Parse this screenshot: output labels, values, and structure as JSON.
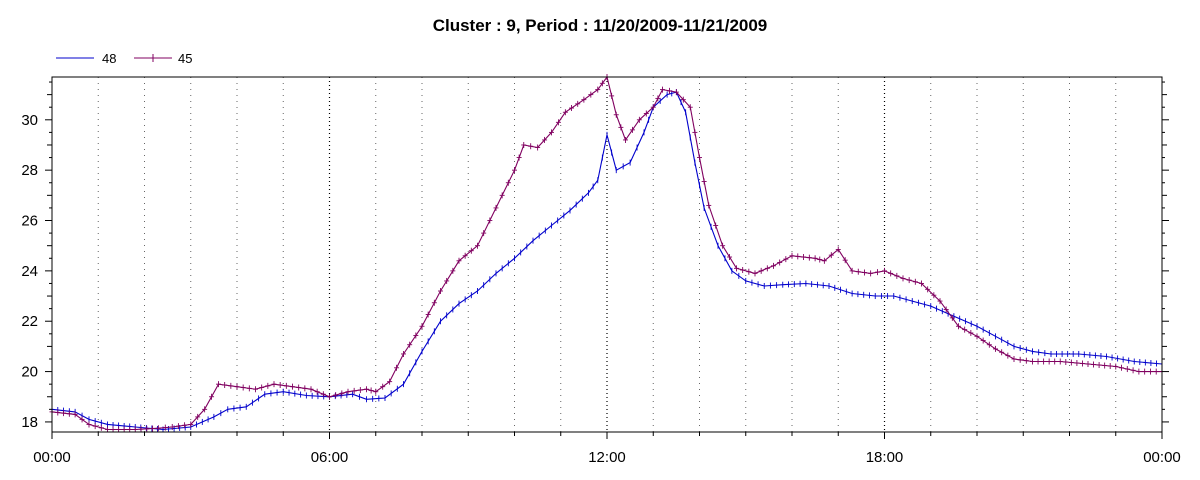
{
  "chart_data": {
    "type": "line",
    "title": "Cluster : 9, Period : 11/20/2009-11/21/2009",
    "xlabel": "",
    "ylabel": "",
    "x_unit": "hours",
    "xlim": [
      0,
      24
    ],
    "ylim": [
      17.6,
      31.7
    ],
    "x_ticks": [
      {
        "value": 0,
        "label": "00:00"
      },
      {
        "value": 6,
        "label": "06:00"
      },
      {
        "value": 12,
        "label": "12:00"
      },
      {
        "value": 18,
        "label": "18:00"
      },
      {
        "value": 24,
        "label": "00:00"
      }
    ],
    "y_ticks": [
      18,
      20,
      22,
      24,
      26,
      28,
      30
    ],
    "grid": {
      "vertical_dotted": true,
      "horizontal": false
    },
    "legend": {
      "placement": "top-left"
    },
    "series": [
      {
        "name": "48",
        "color": "#0000cc",
        "marker": "tick",
        "points": [
          [
            0,
            18.5
          ],
          [
            0.5,
            18.4
          ],
          [
            0.8,
            18.1
          ],
          [
            1.2,
            17.9
          ],
          [
            1.8,
            17.8
          ],
          [
            2.4,
            17.7
          ],
          [
            3.0,
            17.8
          ],
          [
            3.5,
            18.2
          ],
          [
            3.8,
            18.5
          ],
          [
            4.2,
            18.6
          ],
          [
            4.6,
            19.1
          ],
          [
            5.0,
            19.2
          ],
          [
            5.5,
            19.05
          ],
          [
            6.0,
            19.0
          ],
          [
            6.5,
            19.1
          ],
          [
            6.8,
            18.9
          ],
          [
            7.2,
            18.95
          ],
          [
            7.6,
            19.5
          ],
          [
            8.0,
            20.8
          ],
          [
            8.4,
            22.0
          ],
          [
            8.8,
            22.7
          ],
          [
            9.2,
            23.2
          ],
          [
            9.6,
            23.9
          ],
          [
            10.0,
            24.5
          ],
          [
            10.4,
            25.2
          ],
          [
            10.8,
            25.8
          ],
          [
            11.2,
            26.4
          ],
          [
            11.6,
            27.1
          ],
          [
            11.8,
            27.6
          ],
          [
            12.0,
            29.4
          ],
          [
            12.2,
            28.0
          ],
          [
            12.5,
            28.3
          ],
          [
            12.8,
            29.5
          ],
          [
            13.0,
            30.5
          ],
          [
            13.3,
            31.0
          ],
          [
            13.5,
            31.1
          ],
          [
            13.7,
            30.3
          ],
          [
            13.9,
            28.3
          ],
          [
            14.1,
            26.5
          ],
          [
            14.4,
            25.0
          ],
          [
            14.7,
            24.0
          ],
          [
            15.0,
            23.6
          ],
          [
            15.4,
            23.4
          ],
          [
            15.8,
            23.45
          ],
          [
            16.3,
            23.5
          ],
          [
            16.8,
            23.4
          ],
          [
            17.3,
            23.1
          ],
          [
            17.8,
            23.0
          ],
          [
            18.2,
            23.0
          ],
          [
            18.6,
            22.8
          ],
          [
            19.0,
            22.6
          ],
          [
            19.5,
            22.2
          ],
          [
            20.0,
            21.8
          ],
          [
            20.4,
            21.4
          ],
          [
            20.8,
            21.0
          ],
          [
            21.2,
            20.8
          ],
          [
            21.6,
            20.7
          ],
          [
            22.2,
            20.7
          ],
          [
            22.8,
            20.6
          ],
          [
            23.4,
            20.4
          ],
          [
            24.0,
            20.3
          ]
        ]
      },
      {
        "name": "45",
        "color": "#800060",
        "marker": "plus",
        "points": [
          [
            0,
            18.4
          ],
          [
            0.5,
            18.3
          ],
          [
            0.8,
            17.9
          ],
          [
            1.2,
            17.7
          ],
          [
            1.8,
            17.7
          ],
          [
            2.3,
            17.75
          ],
          [
            2.6,
            17.8
          ],
          [
            3.0,
            17.9
          ],
          [
            3.3,
            18.5
          ],
          [
            3.6,
            19.5
          ],
          [
            4.0,
            19.4
          ],
          [
            4.4,
            19.3
          ],
          [
            4.8,
            19.5
          ],
          [
            5.2,
            19.4
          ],
          [
            5.6,
            19.3
          ],
          [
            6.0,
            19.0
          ],
          [
            6.4,
            19.2
          ],
          [
            6.8,
            19.3
          ],
          [
            7.0,
            19.2
          ],
          [
            7.3,
            19.6
          ],
          [
            7.6,
            20.7
          ],
          [
            8.0,
            21.8
          ],
          [
            8.4,
            23.2
          ],
          [
            8.8,
            24.4
          ],
          [
            9.2,
            25.0
          ],
          [
            9.6,
            26.5
          ],
          [
            10.0,
            28.0
          ],
          [
            10.2,
            29.0
          ],
          [
            10.5,
            28.9
          ],
          [
            10.8,
            29.5
          ],
          [
            11.1,
            30.3
          ],
          [
            11.5,
            30.8
          ],
          [
            11.8,
            31.2
          ],
          [
            12.0,
            31.8
          ],
          [
            12.2,
            30.2
          ],
          [
            12.4,
            29.2
          ],
          [
            12.7,
            30.0
          ],
          [
            13.0,
            30.5
          ],
          [
            13.2,
            31.2
          ],
          [
            13.5,
            31.1
          ],
          [
            13.8,
            30.5
          ],
          [
            14.0,
            28.5
          ],
          [
            14.2,
            26.6
          ],
          [
            14.5,
            25.0
          ],
          [
            14.8,
            24.1
          ],
          [
            15.2,
            23.9
          ],
          [
            15.6,
            24.2
          ],
          [
            16.0,
            24.6
          ],
          [
            16.5,
            24.5
          ],
          [
            16.7,
            24.4
          ],
          [
            17.0,
            24.85
          ],
          [
            17.3,
            24.0
          ],
          [
            17.7,
            23.9
          ],
          [
            18.0,
            24.0
          ],
          [
            18.4,
            23.7
          ],
          [
            18.8,
            23.5
          ],
          [
            19.2,
            22.8
          ],
          [
            19.6,
            21.8
          ],
          [
            20.0,
            21.4
          ],
          [
            20.4,
            20.9
          ],
          [
            20.8,
            20.5
          ],
          [
            21.2,
            20.4
          ],
          [
            21.8,
            20.4
          ],
          [
            22.4,
            20.3
          ],
          [
            23.0,
            20.2
          ],
          [
            23.5,
            20.0
          ],
          [
            24.0,
            20.0
          ]
        ]
      }
    ]
  }
}
